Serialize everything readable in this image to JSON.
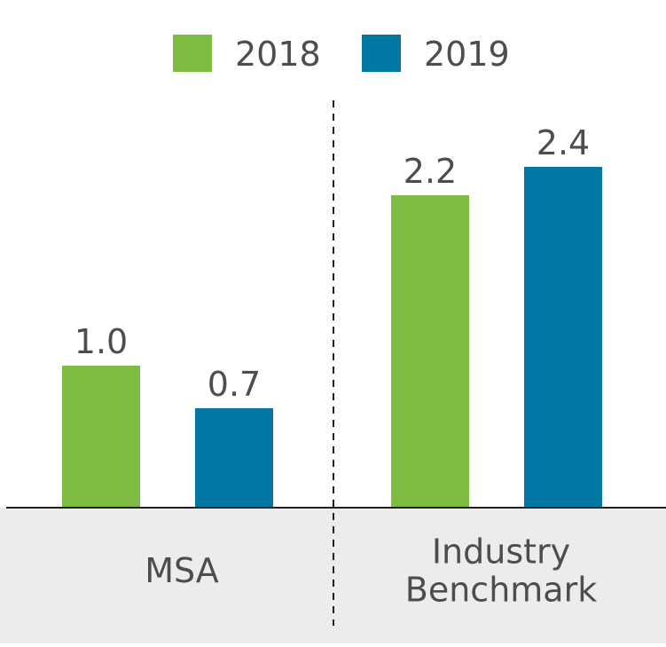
{
  "chart_data": {
    "type": "bar",
    "title": "",
    "xlabel": "",
    "ylabel": "",
    "ylim": [
      0,
      2.6
    ],
    "grid": false,
    "legend_position": "top-center",
    "categories": [
      "MSA",
      "Industry Benchmark"
    ],
    "category_lines": [
      [
        "MSA"
      ],
      [
        "Industry",
        "Benchmark"
      ]
    ],
    "series": [
      {
        "name": "2018",
        "color": "#7dbb42",
        "values": [
          1.0,
          2.2
        ],
        "labels": [
          "1.0",
          "2.2"
        ]
      },
      {
        "name": "2019",
        "color": "#0078a3",
        "values": [
          0.7,
          2.4
        ],
        "labels": [
          "0.7",
          "2.4"
        ]
      }
    ]
  }
}
